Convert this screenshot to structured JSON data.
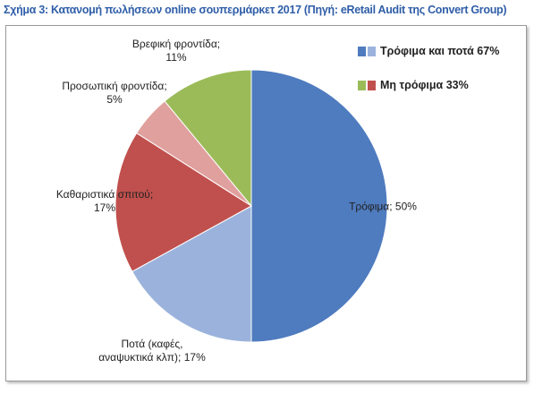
{
  "chart_data": {
    "type": "pie",
    "title": "Σχήμα 3: Κατανομή πωλήσεων online σουπερμάρκετ 2017 (Πηγή: eRetail Audit της Convert Group)",
    "categories": [
      "Τρόφιμα;",
      "Ποτά (καφές, αναψυκτικά κλπ);",
      "Καθαριστικά σπιτού;",
      "Προσωπική φροντίδα;",
      "Βρεφική φροντίδα;"
    ],
    "values": [
      50,
      17,
      17,
      5,
      11
    ],
    "value_labels": [
      "50%",
      "17%",
      "17%",
      "5%",
      "11%"
    ],
    "colors": [
      "#4f7bbf",
      "#9bb3dc",
      "#c0504d",
      "#e0a09d",
      "#9bbb59"
    ],
    "legend": [
      {
        "label": "Τρόφιμα και ποτά 67%",
        "colors": [
          "#4f7bbf",
          "#9bb3dc"
        ]
      },
      {
        "label": "Μη τρόφιμα 33%",
        "colors": [
          "#9bbb59",
          "#c0504d"
        ]
      }
    ]
  }
}
